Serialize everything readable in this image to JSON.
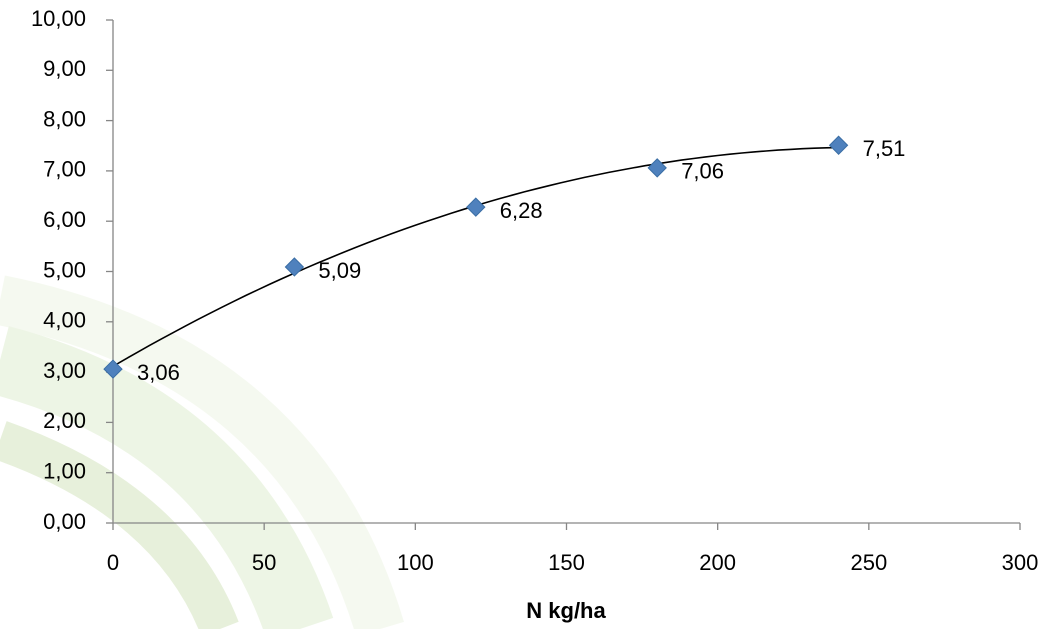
{
  "chart_data": {
    "type": "scatter",
    "x_label": "N kg/ha",
    "x": [
      0,
      60,
      120,
      180,
      240
    ],
    "values": [
      3.06,
      5.09,
      6.28,
      7.06,
      7.51
    ],
    "value_labels": [
      "3,06",
      "5,09",
      "6,28",
      "7,06",
      "7,51"
    ],
    "color": "#4f81bd",
    "trendline": "polynomial",
    "xlim": [
      0,
      300
    ],
    "xticks": [
      0,
      50,
      100,
      150,
      200,
      250,
      300
    ],
    "ylim": [
      0,
      10
    ],
    "yticks": [
      {
        "value": 0,
        "label": "0,00"
      },
      {
        "value": 1,
        "label": "1,00"
      },
      {
        "value": 2,
        "label": "2,00"
      },
      {
        "value": 3,
        "label": "3,00"
      },
      {
        "value": 4,
        "label": "4,00"
      },
      {
        "value": 5,
        "label": "5,00"
      },
      {
        "value": 6,
        "label": "6,00"
      },
      {
        "value": 7,
        "label": "7,00"
      },
      {
        "value": 8,
        "label": "8,00"
      },
      {
        "value": 9,
        "label": "9,00"
      },
      {
        "value": 10,
        "label": "10,00"
      }
    ],
    "grid": false
  }
}
